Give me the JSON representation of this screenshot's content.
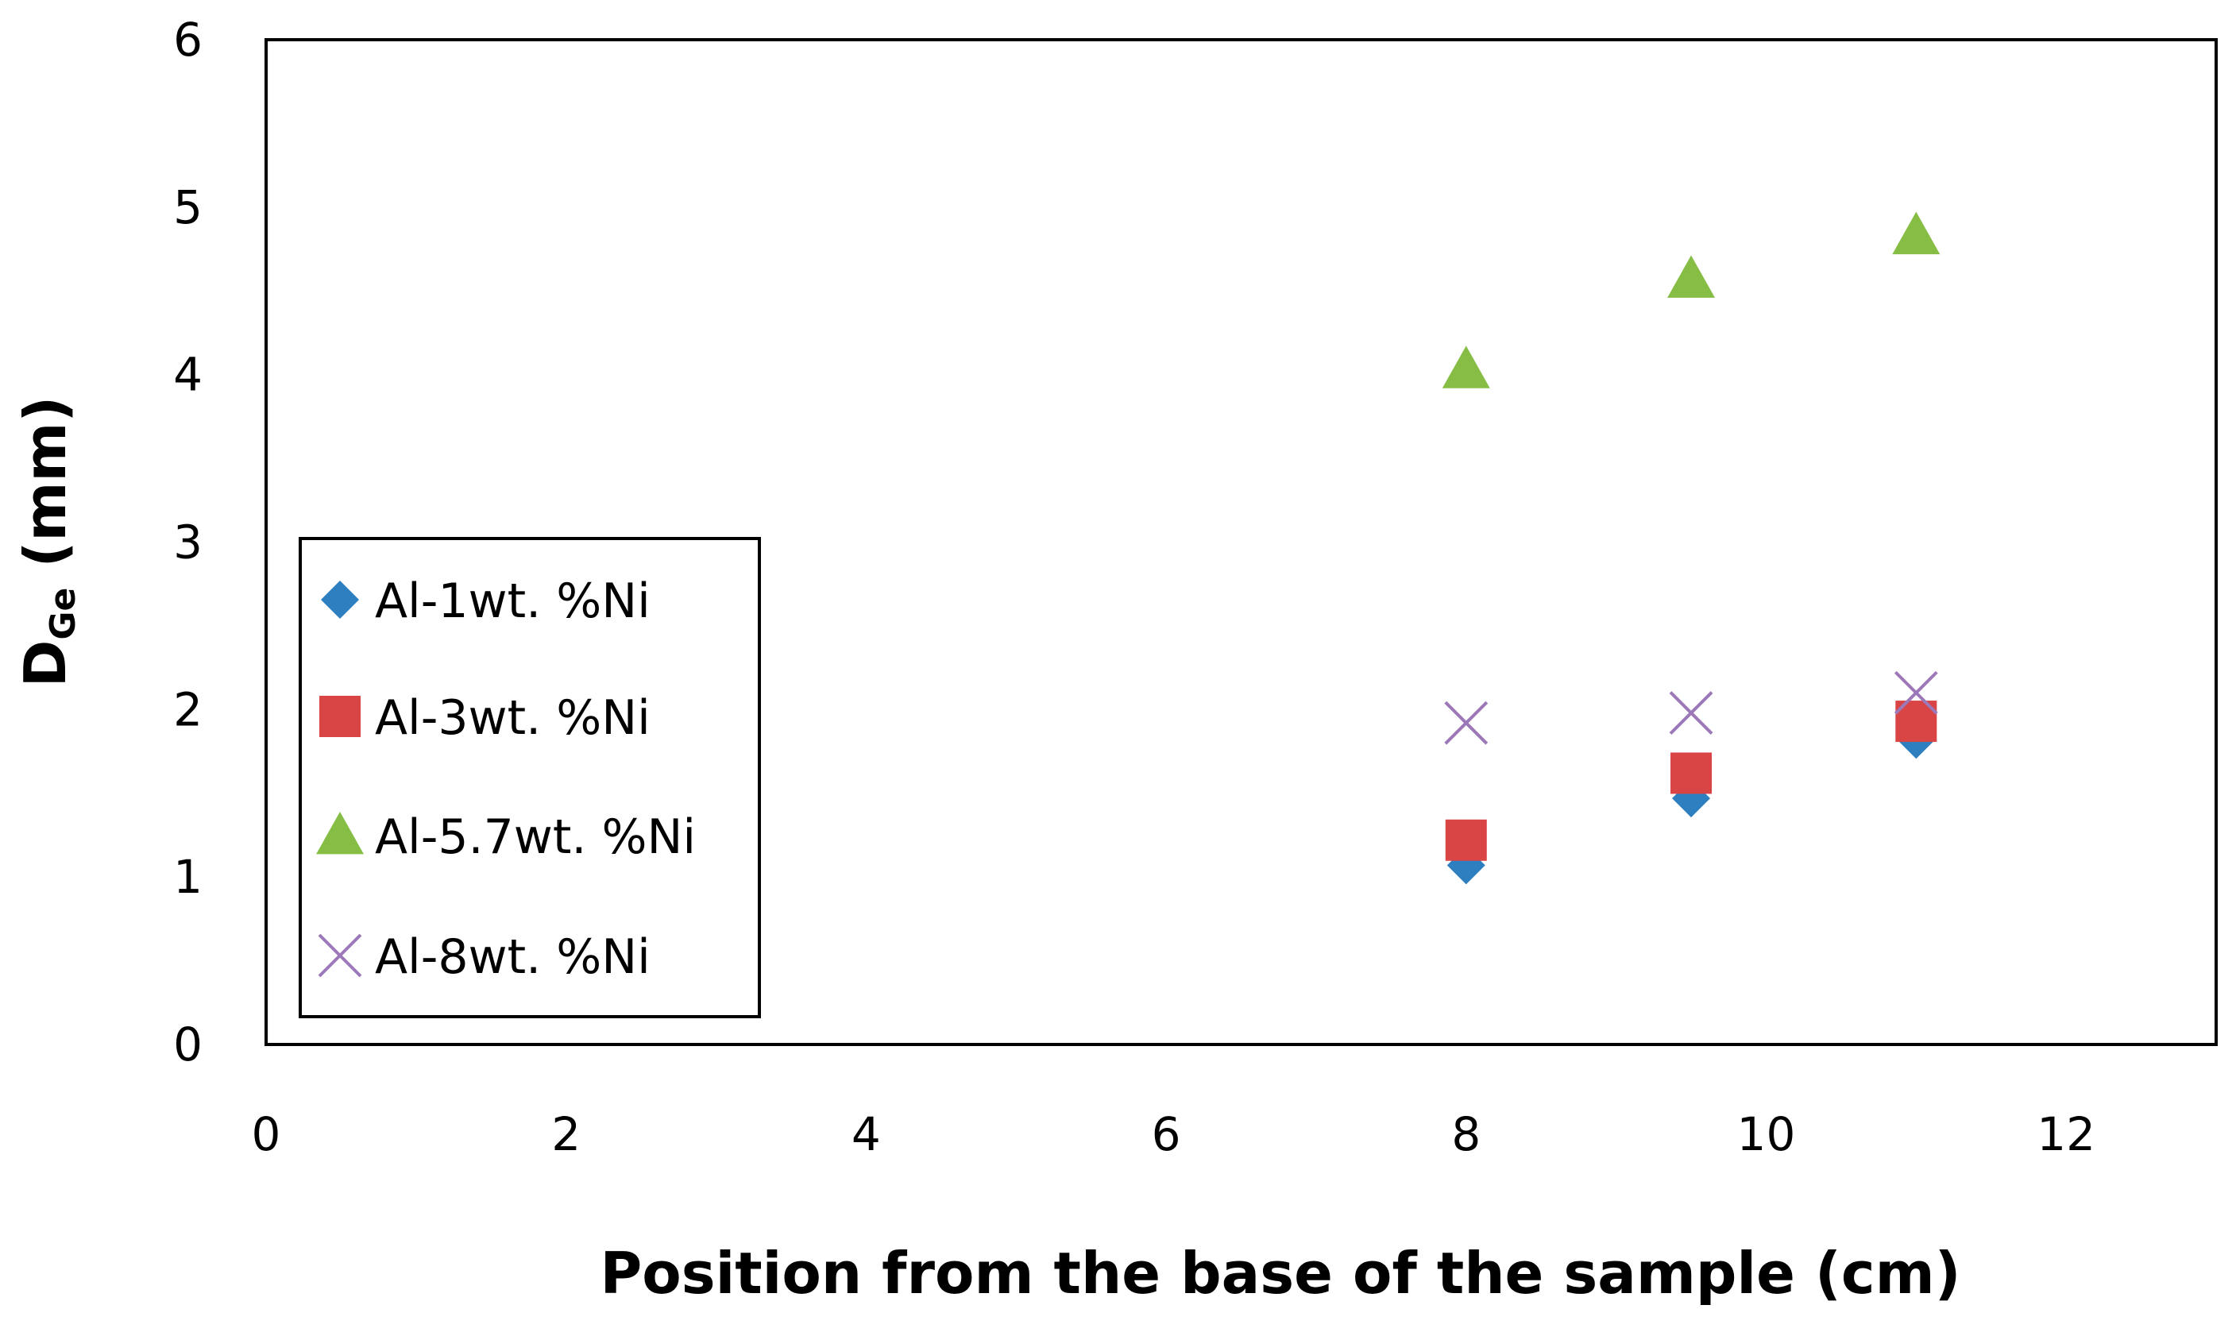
{
  "chart_data": {
    "type": "scatter",
    "title": "",
    "xlabel": "Position from the base of the sample (cm)",
    "ylabel_main": "D",
    "ylabel_sub": "Ge",
    "ylabel_unit": " (mm)",
    "xlim": [
      0,
      13
    ],
    "ylim": [
      0,
      6
    ],
    "xticks": [
      0,
      2,
      4,
      6,
      8,
      10,
      12
    ],
    "yticks": [
      0,
      1,
      2,
      3,
      4,
      5,
      6
    ],
    "grid": false,
    "legend_position": "center-left",
    "series": [
      {
        "name": "Al-1wt. %Ni",
        "marker": "diamond",
        "color": "#2E7FC0",
        "x": [
          8,
          9.5,
          11
        ],
        "y": [
          1.07,
          1.47,
          1.82
        ]
      },
      {
        "name": "Al-3wt. %Ni",
        "marker": "square",
        "color": "#D94545",
        "x": [
          8,
          9.5,
          11
        ],
        "y": [
          1.22,
          1.62,
          1.93
        ]
      },
      {
        "name": "Al-5.7wt. %Ni",
        "marker": "triangle",
        "color": "#86BD45",
        "x": [
          8,
          9.5,
          11
        ],
        "y": [
          4.03,
          4.57,
          4.83
        ]
      },
      {
        "name": "Al-8wt. %Ni",
        "marker": "x",
        "color": "#9C78B8",
        "x": [
          8,
          9.5,
          11
        ],
        "y": [
          1.92,
          1.98,
          2.1
        ]
      }
    ]
  }
}
